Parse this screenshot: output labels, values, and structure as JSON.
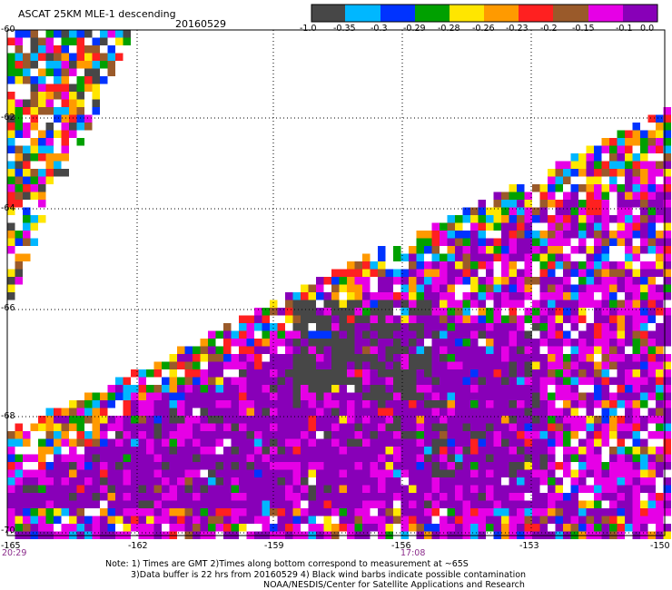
{
  "header": {
    "title": "ASCAT 25KM MLE-1 descending",
    "date": "20160529"
  },
  "colorbar": {
    "colors": [
      "#474747",
      "#00b7ff",
      "#0033ff",
      "#00a000",
      "#ffe600",
      "#ff9a00",
      "#ff2020",
      "#9a5a2a",
      "#e600e6",
      "#8800b8"
    ],
    "labels": [
      "-1.0",
      "-0.35",
      "-0.3",
      "-0.29",
      "-0.28",
      "-0.26",
      "-0.23",
      "-0.2",
      "-0.15",
      "-0.1",
      "0.0"
    ]
  },
  "axes": {
    "latitudes": [
      "-60",
      "-62",
      "-64",
      "-66",
      "-68",
      "-70"
    ],
    "longitudes": [
      "-165",
      "-162",
      "-159",
      "-156",
      "-153",
      "-150"
    ],
    "times": [
      "20:29",
      "17:08"
    ]
  },
  "notes": [
    "Note: 1) Times are GMT 2)Times along bottom correspond to measurement at ~65S",
    "3)Data buffer is 22 hrs from 20160529 4) Black wind barbs indicate possible contamination",
    "NOAA/NESDIS/Center for Satellite Applications and Research"
  ]
}
